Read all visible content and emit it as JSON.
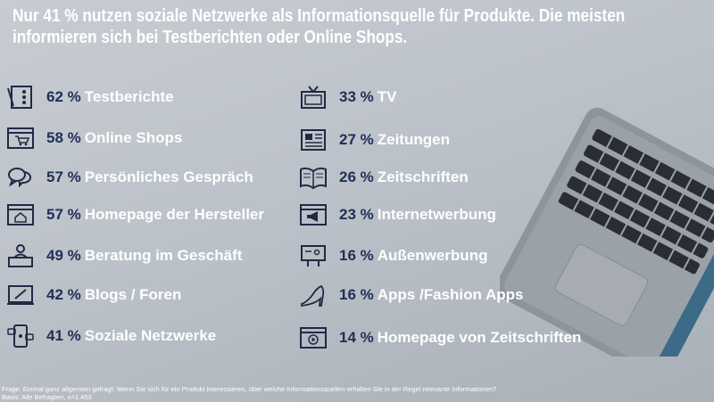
{
  "title_line1": "Nur 41 % nutzen soziale Netzwerke als Informationsquelle für Produkte. Die meisten",
  "title_line2": "informieren sich bei Testberichten oder Online Shops.",
  "chart_data": {
    "type": "table",
    "unit": "%",
    "left_column": [
      {
        "pct": "62 %",
        "value": 62,
        "label": "Testberichte",
        "icon": "checklist-icon"
      },
      {
        "pct": "58 %",
        "value": 58,
        "label": "Online Shops",
        "icon": "shopping-cart-icon"
      },
      {
        "pct": "57 %",
        "value": 57,
        "label": "Persönliches Gespräch",
        "icon": "speech-bubbles-icon"
      },
      {
        "pct": "57 %",
        "value": 57,
        "label": "Homepage der Hersteller",
        "icon": "homepage-icon"
      },
      {
        "pct": "49 %",
        "value": 49,
        "label": "Beratung im Geschäft",
        "icon": "consultant-icon"
      },
      {
        "pct": "42 %",
        "value": 42,
        "label": "Blogs / Foren",
        "icon": "blog-icon"
      },
      {
        "pct": "41 %",
        "value": 41,
        "label": "Soziale Netzwerke",
        "icon": "social-network-icon"
      }
    ],
    "right_column": [
      {
        "pct": "33 %",
        "value": 33,
        "label": "TV",
        "icon": "tv-icon"
      },
      {
        "pct": "27 %",
        "value": 27,
        "label": "Zeitungen",
        "icon": "newspaper-icon"
      },
      {
        "pct": "26 %",
        "value": 26,
        "label": "Zeitschriften",
        "icon": "magazine-icon"
      },
      {
        "pct": "23 %",
        "value": 23,
        "label": "Internetwerbung",
        "icon": "megaphone-icon"
      },
      {
        "pct": "16 %",
        "value": 16,
        "label": "Außenwerbung",
        "icon": "billboard-icon"
      },
      {
        "pct": "16 %",
        "value": 16,
        "label": "Apps /Fashion Apps",
        "icon": "high-heel-icon"
      },
      {
        "pct": "14 %",
        "value": 14,
        "label": "Homepage von Zeitschriften",
        "icon": "web-video-icon"
      }
    ]
  },
  "footer_line1": "Frage: Einmal ganz allgemein gefragt: Wenn Sie sich für ein Produkt interessieren, über welche Informationsquellen erhalten Sie in der Regel relevante Informationen?",
  "footer_line2": "Basis: Alle Befragten, n=1.453",
  "colors": {
    "percent": "#1f2f55",
    "label": "#ffffff",
    "icon": "#1f2a44"
  }
}
